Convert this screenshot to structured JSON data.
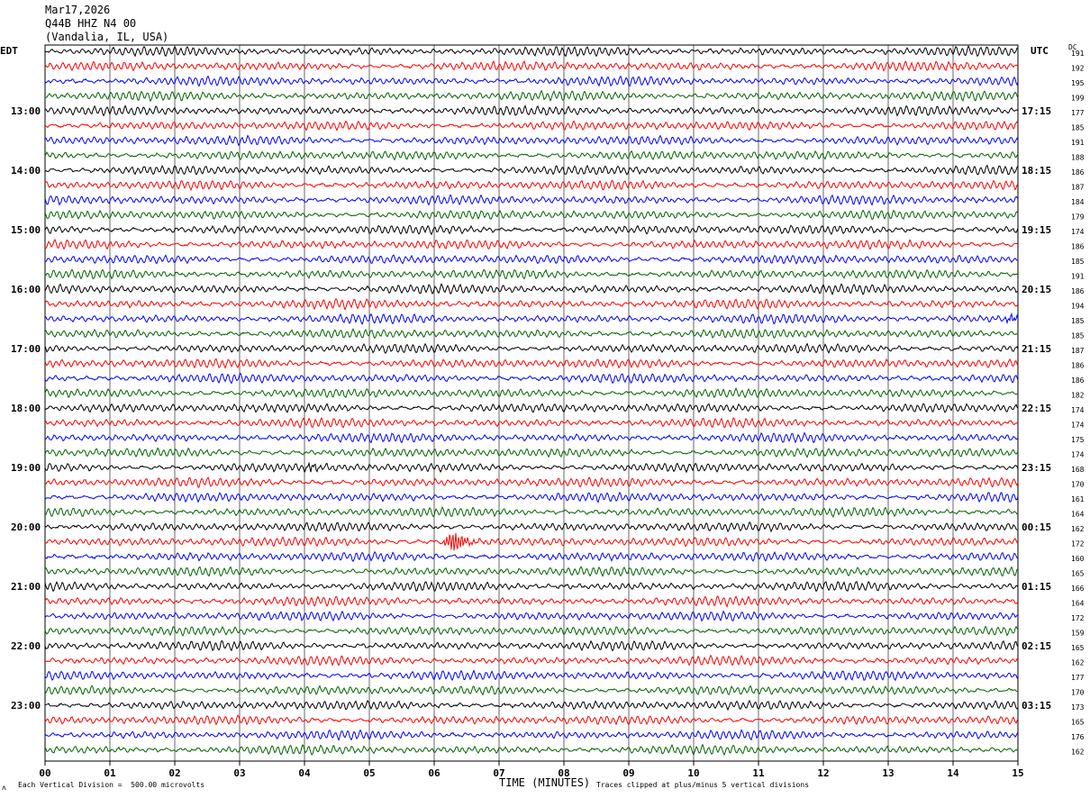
{
  "header": {
    "date": "Mar17,2026",
    "station": "Q44B HHZ N4 00",
    "location": "(Vandalia, IL, USA)"
  },
  "left_tz": "EDT",
  "right_tz": "UTC",
  "dc_label": "DC",
  "footer": {
    "scale_note": "Each Vertical Division =  500.00 microvolts",
    "xlabel": "TIME (MINUTES)",
    "clip_note": "Traces clipped at plus/minus 5 vertical divisions"
  },
  "colors": {
    "trace_cycle": [
      "#000000",
      "#ff0000",
      "#0000ff",
      "#006400"
    ],
    "grid": "#000000"
  },
  "chart_data": {
    "type": "line",
    "title": "Q44B HHZ N4 00 (Vandalia, IL, USA) Mar17,2026",
    "xlabel": "TIME (MINUTES)",
    "xlim": [
      0,
      15
    ],
    "x_ticks": [
      "00",
      "01",
      "02",
      "03",
      "04",
      "05",
      "06",
      "07",
      "08",
      "09",
      "10",
      "11",
      "12",
      "13",
      "14",
      "15"
    ],
    "minutes_per_trace": 15,
    "traces_per_hour": 4,
    "left_hour_labels": [
      "13:00",
      "14:00",
      "15:00",
      "16:00",
      "17:00",
      "18:00",
      "19:00",
      "20:00",
      "21:00",
      "22:00",
      "23:00"
    ],
    "right_hour_labels": [
      "17:15",
      "18:15",
      "19:15",
      "20:15",
      "21:15",
      "22:15",
      "23:15",
      "00:15",
      "01:15",
      "02:15",
      "03:15"
    ],
    "dc_offsets": [
      191,
      192,
      195,
      199,
      177,
      185,
      191,
      188,
      186,
      187,
      184,
      179,
      174,
      186,
      185,
      191,
      186,
      194,
      185,
      185,
      187,
      186,
      186,
      182,
      174,
      174,
      175,
      174,
      168,
      170,
      161,
      164,
      162,
      172,
      160,
      165,
      166,
      164,
      172,
      159,
      165,
      162,
      177,
      170,
      173,
      165,
      176,
      162
    ],
    "events": [
      {
        "trace_index": 28,
        "minute": 4.1,
        "description": "small burst"
      },
      {
        "trace_index": 33,
        "minute": 6.3,
        "description": "strong burst"
      },
      {
        "trace_index": 18,
        "minute": 14.9,
        "description": "small burst"
      }
    ]
  }
}
